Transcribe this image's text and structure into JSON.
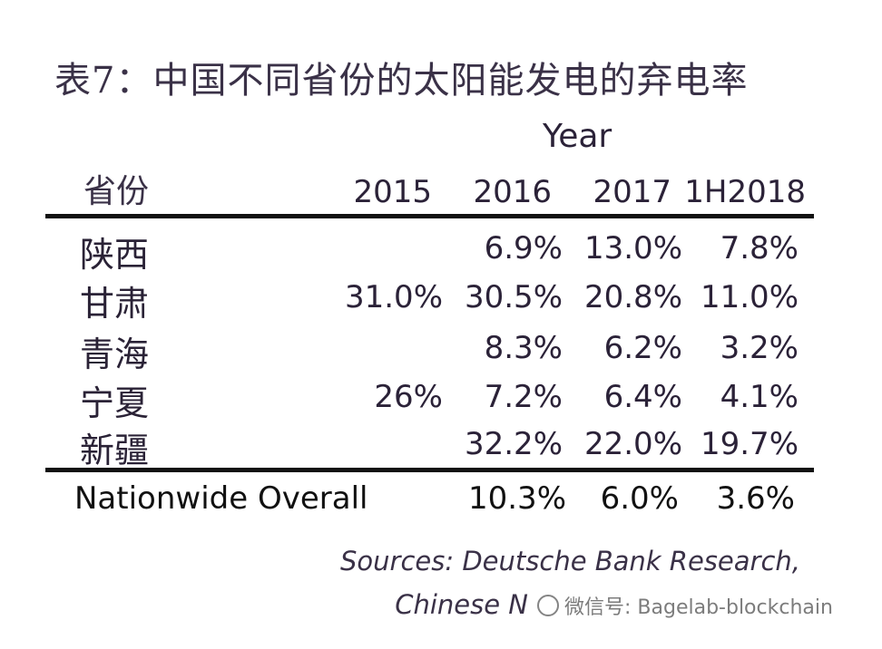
{
  "title": "表7：中国不同省份的太阳能发电的弃电率",
  "header": {
    "year_group": "Year",
    "province": "省份",
    "years": [
      "2015",
      "2016",
      "2017",
      "1H2018"
    ]
  },
  "rows": [
    {
      "province": "陕西",
      "v2015": "",
      "v2016": "6.9%",
      "v2017": "13.0%",
      "v1h2018": "7.8%"
    },
    {
      "province": "甘肃",
      "v2015": "31.0%",
      "v2016": "30.5%",
      "v2017": "20.8%",
      "v1h2018": "11.0%"
    },
    {
      "province": "青海",
      "v2015": "",
      "v2016": "8.3%",
      "v2017": "6.2%",
      "v1h2018": "3.2%"
    },
    {
      "province": "宁夏",
      "v2015": "26%",
      "v2016": "7.2%",
      "v2017": "6.4%",
      "v1h2018": "4.1%"
    },
    {
      "province": "新疆",
      "v2015": "",
      "v2016": "32.2%",
      "v2017": "22.0%",
      "v1h2018": "19.7%"
    }
  ],
  "nationwide": {
    "label": "Nationwide Overall",
    "v2016": "10.3%",
    "v2017": "6.0%",
    "v1h2018": "3.6%"
  },
  "sources": {
    "line1": "Sources: Deutsche Bank Research,",
    "line2": "Chinese N"
  },
  "watermark": "微信号: Bagelab-blockchain"
}
